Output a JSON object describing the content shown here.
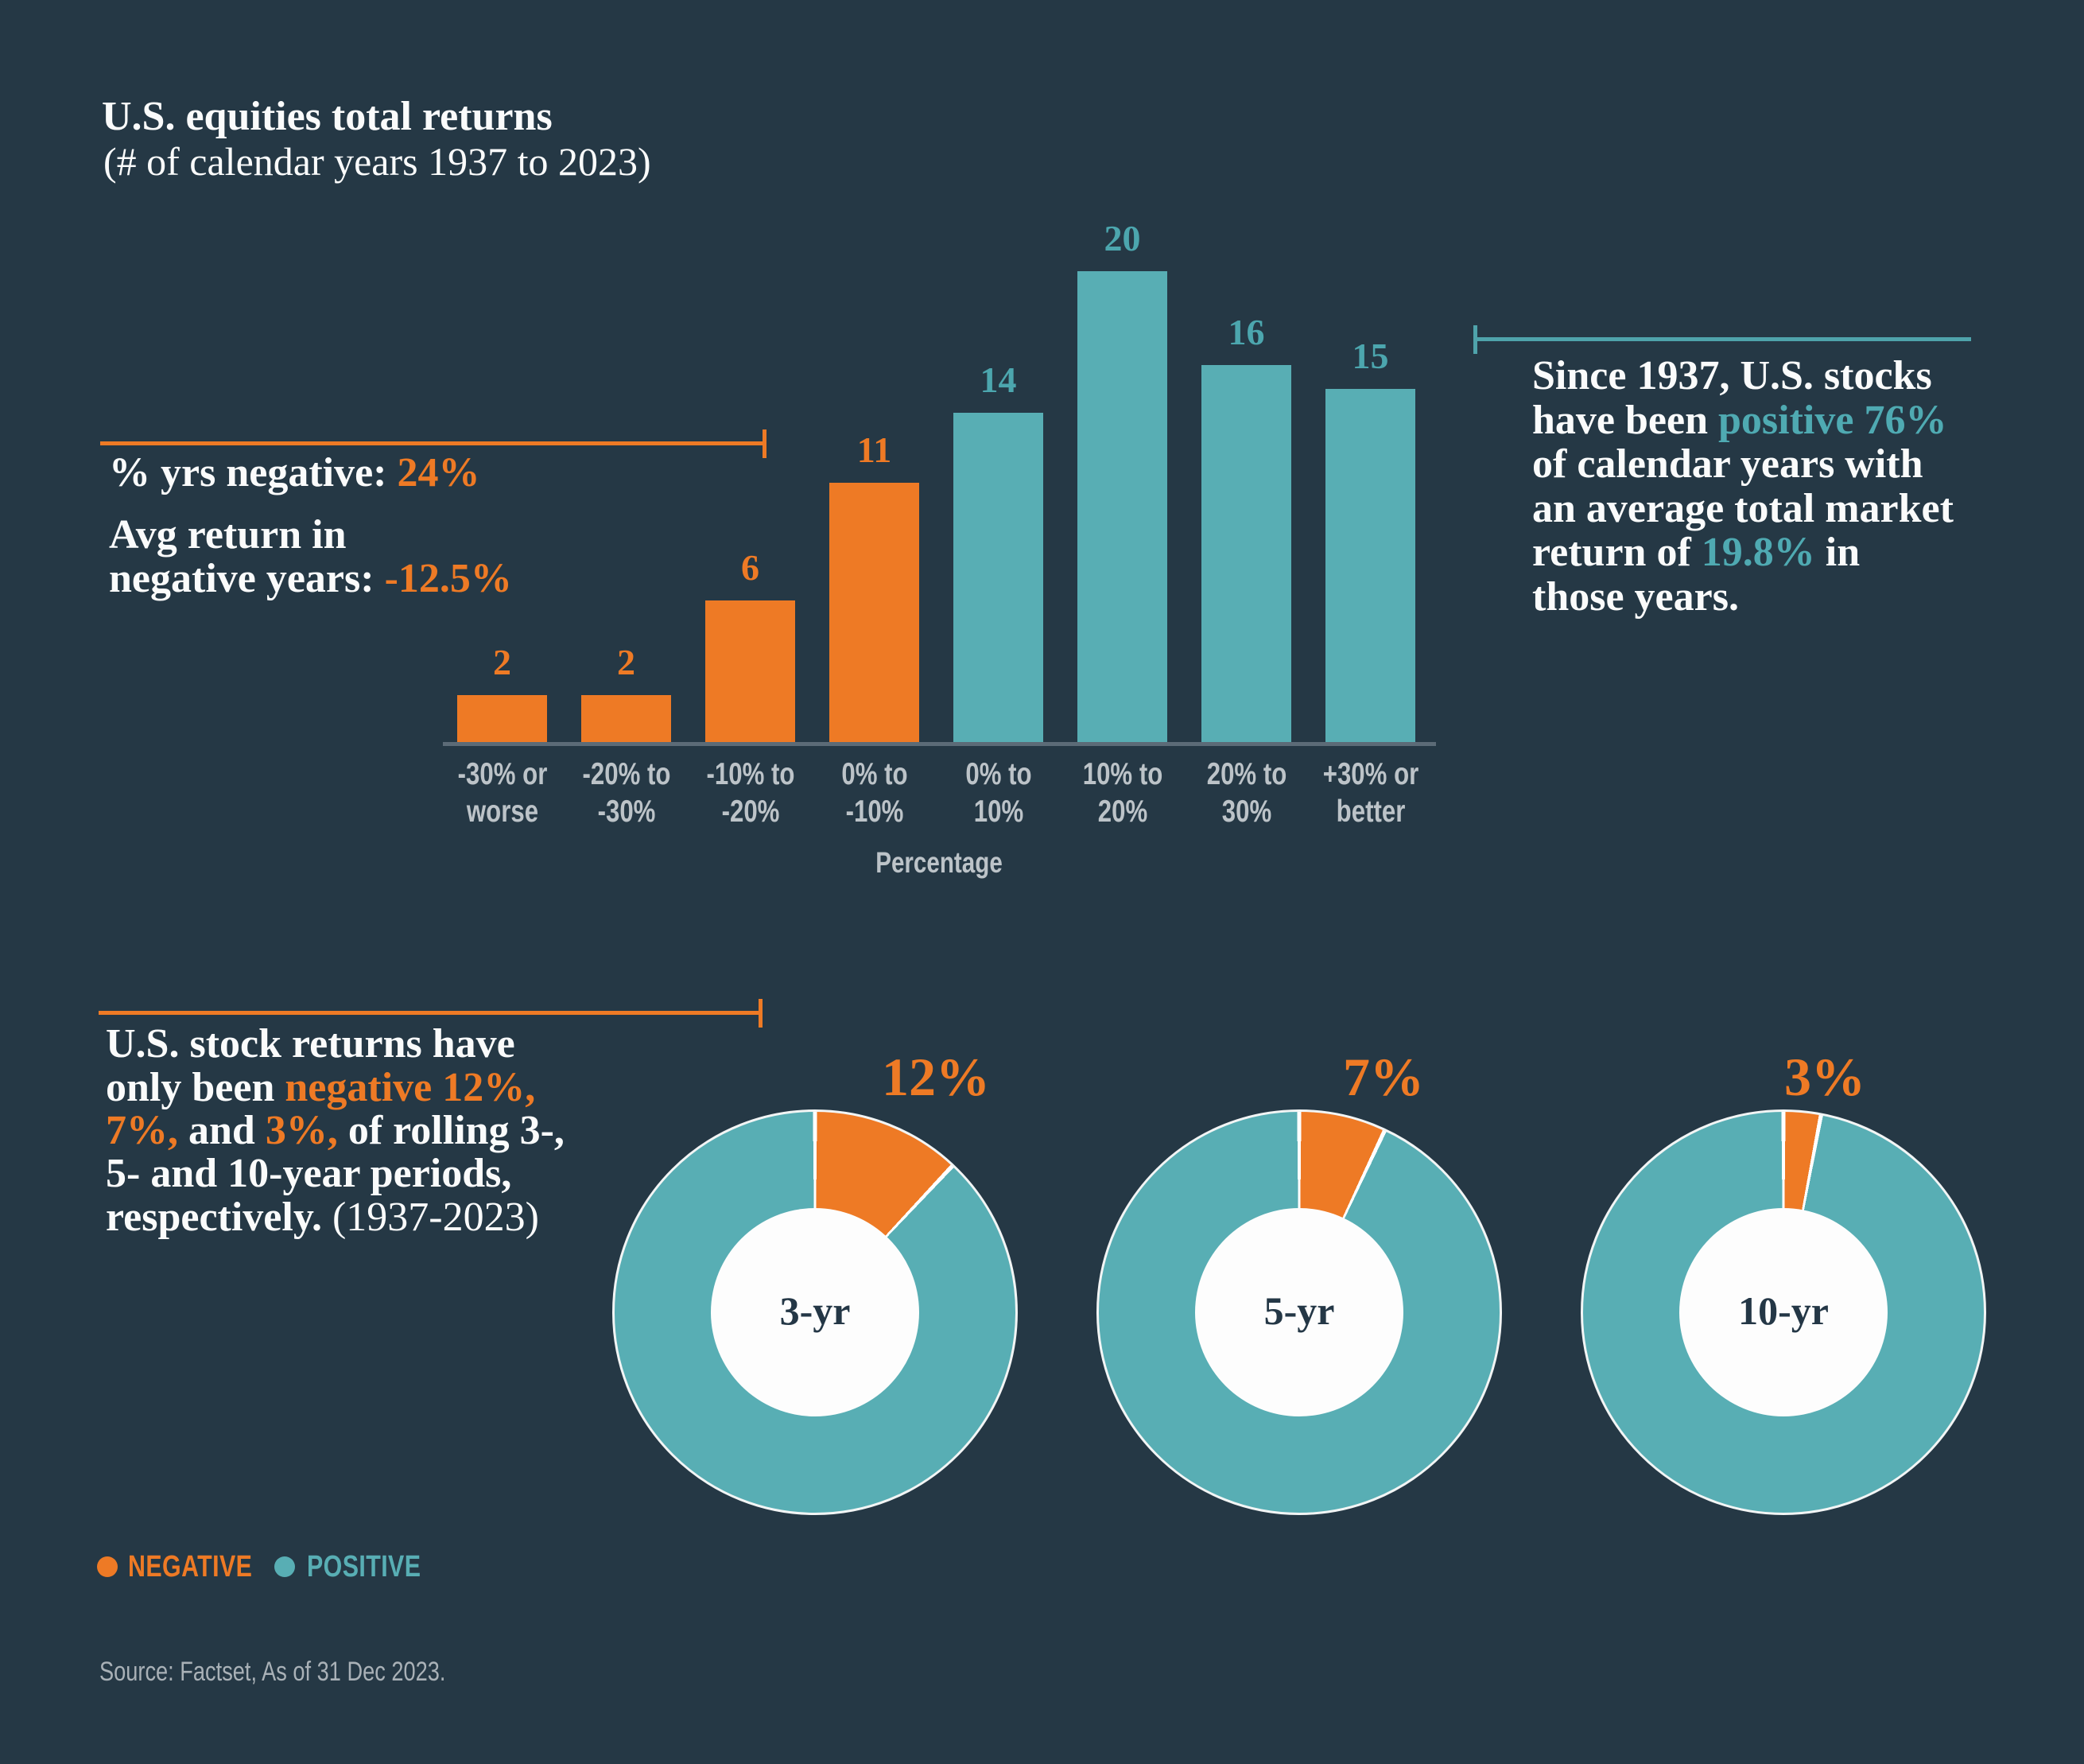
{
  "colors": {
    "background": "#253845",
    "negative": "#EE7A25",
    "positive": "#58AEB4",
    "negative_label": "#EE7A25",
    "positive_label": "#4CA6AE",
    "teal_rule": "#4FA3AB",
    "white_text": "#FAFBFB",
    "axis_line": "#5C6B77",
    "muted_label": "#BCC3C8",
    "source_text": "#A9B1B7",
    "donut_center_text": "#243746",
    "donut_hole": "#FDFDFD"
  },
  "title": {
    "line1": "U.S. equities total returns",
    "line2": "(# of calendar years 1937 to 2023)"
  },
  "chart_data": [
    {
      "type": "bar",
      "title": "U.S. equities total returns (# of calendar years 1937 to 2023)",
      "categories": [
        "-30% or worse",
        "-20% to -30%",
        "-10% to -20%",
        "0% to -10%",
        "0% to 10%",
        "10% to 20%",
        "20% to 30%",
        "+30% or better"
      ],
      "category_lines": [
        [
          "-30% or",
          "worse"
        ],
        [
          "-20% to",
          "-30%"
        ],
        [
          "-10% to",
          "-20%"
        ],
        [
          "0% to",
          "-10%"
        ],
        [
          "0% to",
          "10%"
        ],
        [
          "10% to",
          "20%"
        ],
        [
          "20% to",
          "30%"
        ],
        [
          "+30% or",
          "better"
        ]
      ],
      "values": [
        2,
        2,
        6,
        11,
        14,
        20,
        16,
        15
      ],
      "groups": [
        "negative",
        "negative",
        "negative",
        "negative",
        "positive",
        "positive",
        "positive",
        "positive"
      ],
      "xlabel": "Percentage",
      "ylabel": "",
      "ylim": [
        0,
        20
      ],
      "grid": false,
      "value_labels": true,
      "legend_position": "bottom-left"
    },
    {
      "type": "pie",
      "center_label": "3-yr",
      "percent_label": "12%",
      "series": [
        {
          "name": "NEGATIVE",
          "value": 12
        },
        {
          "name": "POSITIVE",
          "value": 88
        }
      ]
    },
    {
      "type": "pie",
      "center_label": "5-yr",
      "percent_label": "7%",
      "series": [
        {
          "name": "NEGATIVE",
          "value": 7
        },
        {
          "name": "POSITIVE",
          "value": 93
        }
      ]
    },
    {
      "type": "pie",
      "center_label": "10-yr",
      "percent_label": "3%",
      "series": [
        {
          "name": "NEGATIVE",
          "value": 3
        },
        {
          "name": "POSITIVE",
          "value": 97
        }
      ]
    }
  ],
  "annotations": {
    "negative_stats": {
      "lines": [
        {
          "segments": [
            {
              "text": "% yrs negative: ",
              "style": "white"
            },
            {
              "text": "24%",
              "style": "orange"
            }
          ]
        },
        {
          "segments": [
            {
              "text": "Avg return in",
              "style": "white"
            }
          ]
        },
        {
          "segments": [
            {
              "text": "negative years: ",
              "style": "white"
            },
            {
              "text": "-12.5%",
              "style": "orange"
            }
          ]
        }
      ]
    },
    "positive_stats": {
      "lines": [
        {
          "segments": [
            {
              "text": "Since 1937, U.S. stocks",
              "style": "white"
            }
          ]
        },
        {
          "segments": [
            {
              "text": "have been ",
              "style": "white"
            },
            {
              "text": "positive 76%",
              "style": "teal"
            }
          ]
        },
        {
          "segments": [
            {
              "text": "of calendar years with",
              "style": "white"
            }
          ]
        },
        {
          "segments": [
            {
              "text": "an average total market",
              "style": "white"
            }
          ]
        },
        {
          "segments": [
            {
              "text": "return of ",
              "style": "white"
            },
            {
              "text": "19.8%",
              "style": "teal"
            },
            {
              "text": " in",
              "style": "white"
            }
          ]
        },
        {
          "segments": [
            {
              "text": "those years.",
              "style": "white"
            }
          ]
        }
      ]
    },
    "rolling_stats": {
      "lines": [
        {
          "segments": [
            {
              "text": "U.S. stock returns have",
              "style": "white"
            }
          ]
        },
        {
          "segments": [
            {
              "text": "only been ",
              "style": "white"
            },
            {
              "text": "negative 12%,",
              "style": "orange"
            }
          ]
        },
        {
          "segments": [
            {
              "text": "7%,",
              "style": "orange"
            },
            {
              "text": " and ",
              "style": "white"
            },
            {
              "text": "3%,",
              "style": "orange"
            },
            {
              "text": " of rolling 3-,",
              "style": "white"
            }
          ]
        },
        {
          "segments": [
            {
              "text": "5- and 10-year periods,",
              "style": "white"
            }
          ]
        },
        {
          "segments": [
            {
              "text": "respectively. ",
              "style": "white"
            },
            {
              "text": "(1937-2023)",
              "style": "paren"
            }
          ]
        }
      ]
    }
  },
  "legend": {
    "items": [
      {
        "label": "NEGATIVE",
        "color_key": "negative"
      },
      {
        "label": "POSITIVE",
        "color_key": "positive"
      }
    ]
  },
  "source": {
    "text": "Source: Factset, As of 31 Dec 2023."
  }
}
